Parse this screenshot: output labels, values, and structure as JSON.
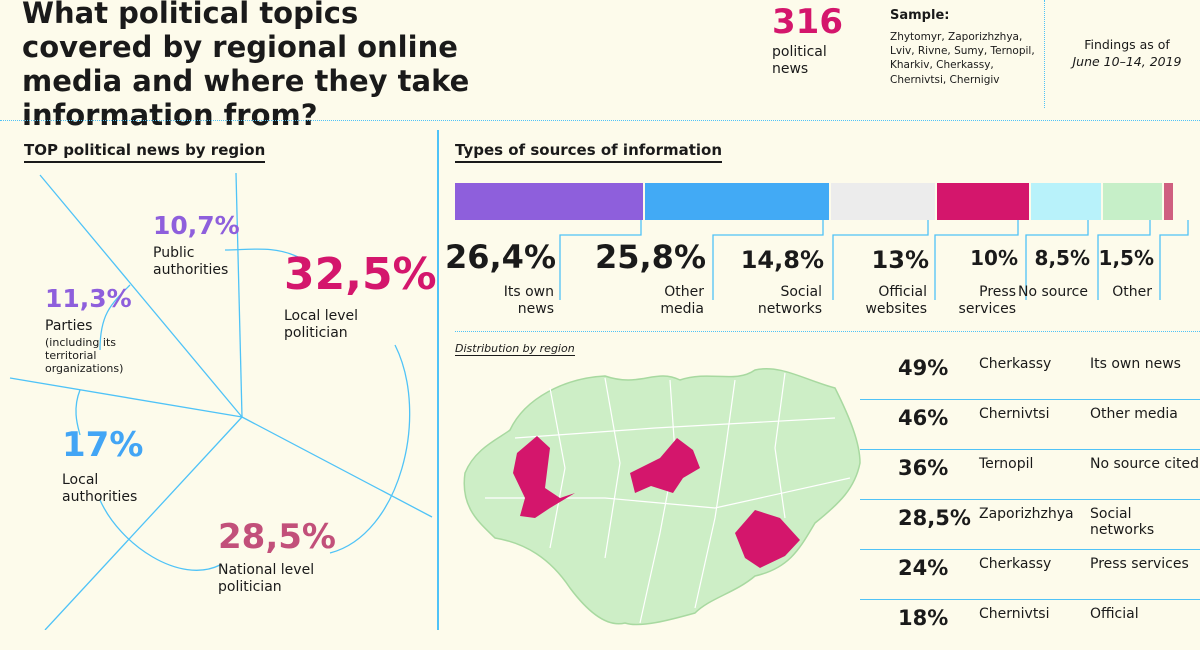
{
  "header": {
    "title": "What political topics covered by regional online media and where they take information from?",
    "total_count": "316",
    "total_label": "political news",
    "sample_heading": "Sample:",
    "sample_list": "Zhytomyr, Zaporizhzhya, Lviv, Rivne, Sumy, Ternopil, Kharkiv, Cherkassy, Chernivtsi, Chernigiv",
    "findings_label": "Findings as of",
    "findings_date": "June 10–14, 2019"
  },
  "colors": {
    "accent": "#d4166c",
    "line": "#4fc3f7",
    "background": "#fdfbeb",
    "map_region": "#cdeec6",
    "map_highlight": "#d4166c"
  },
  "chart_data": [
    {
      "type": "pie",
      "title": "TOP political news by region",
      "slices": [
        {
          "value": "10,7%",
          "label": "Public authorities",
          "color": "#8e5fdc"
        },
        {
          "value": "11,3%",
          "label": "Parties",
          "note": "(including its territorial organizations)",
          "color": "#8e5fdc"
        },
        {
          "value": "17%",
          "label": "Local authorities",
          "color": "#42a5f5"
        },
        {
          "value": "28,5%",
          "label": "National level politician",
          "color": "#c2507a"
        },
        {
          "value": "32,5%",
          "label": "Local level politician",
          "color": "#d4166c"
        }
      ]
    },
    {
      "type": "bar",
      "title": "Types of sources of information",
      "stacked": true,
      "categories": [
        "Its own news",
        "Other media",
        "Social networks",
        "Official websites",
        "Press services",
        "No source",
        "Other"
      ],
      "values": [
        26.4,
        25.8,
        14.8,
        13,
        10,
        8.5,
        1.5
      ],
      "value_labels": [
        "26,4%",
        "25,8%",
        "14,8%",
        "13%",
        "10%",
        "8,5%",
        "1,5%"
      ],
      "colors": [
        "#8e5fdc",
        "#42aaf5",
        "#ececec",
        "#d4166c",
        "#b8f2fa",
        "#c6efc8",
        "#cf5f80"
      ]
    },
    {
      "type": "table",
      "title": "Distribution by region",
      "rows": [
        {
          "value": "49%",
          "region": "Cherkassy",
          "type": "Its own news"
        },
        {
          "value": "46%",
          "region": "Chernivtsi",
          "type": "Other media"
        },
        {
          "value": "36%",
          "region": "Ternopil",
          "type": "No source cited"
        },
        {
          "value": "28,5%",
          "region": "Zaporizhzhya",
          "type": "Social networks"
        },
        {
          "value": "24%",
          "region": "Cherkassy",
          "type": "Press services"
        },
        {
          "value": "18%",
          "region": "Chernivtsi",
          "type": "Official"
        }
      ]
    }
  ]
}
